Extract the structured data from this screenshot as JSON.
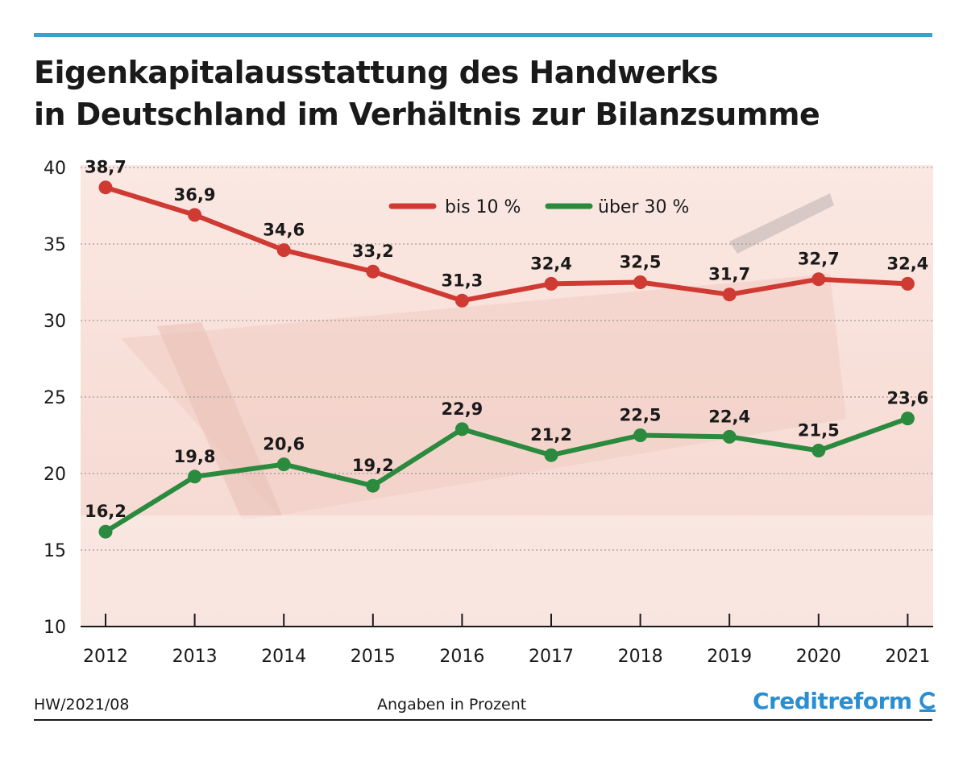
{
  "title_lines": [
    "Eigenkapitalausstattung des Handwerks",
    "in Deutschland im Verhältnis zur Bilanzsumme"
  ],
  "footer": {
    "code": "HW/2021/08",
    "note": "Angaben in Prozent",
    "brand": "Creditreform"
  },
  "colors": {
    "accent_rule": "#3a9fd1",
    "series_red": "#cf3a33",
    "series_green": "#2a8a3e",
    "brand_blue": "#2a8fd1"
  },
  "chart_data": {
    "type": "line",
    "x": [
      "2012",
      "2013",
      "2014",
      "2015",
      "2016",
      "2017",
      "2018",
      "2019",
      "2020",
      "2021"
    ],
    "series": [
      {
        "name": "bis 10 %",
        "color": "#cf3a33",
        "values": [
          38.7,
          36.9,
          34.6,
          33.2,
          31.3,
          32.4,
          32.5,
          31.7,
          32.7,
          32.4
        ],
        "labels": [
          "38,7",
          "36,9",
          "34,6",
          "33,2",
          "31,3",
          "32,4",
          "32,5",
          "31,7",
          "32,7",
          "32,4"
        ]
      },
      {
        "name": "über 30 %",
        "color": "#2a8a3e",
        "values": [
          16.2,
          19.8,
          20.6,
          19.2,
          22.9,
          21.2,
          22.5,
          22.4,
          21.5,
          23.6
        ],
        "labels": [
          "16,2",
          "19,8",
          "20,6",
          "19,2",
          "22,9",
          "21,2",
          "22,5",
          "22,4",
          "21,5",
          "23,6"
        ]
      }
    ],
    "yticks": [
      "40",
      "35",
      "30",
      "25",
      "20",
      "15",
      "10"
    ],
    "ylim": [
      10,
      40
    ],
    "grid": "dotted horizontal",
    "legend": "top-center"
  }
}
